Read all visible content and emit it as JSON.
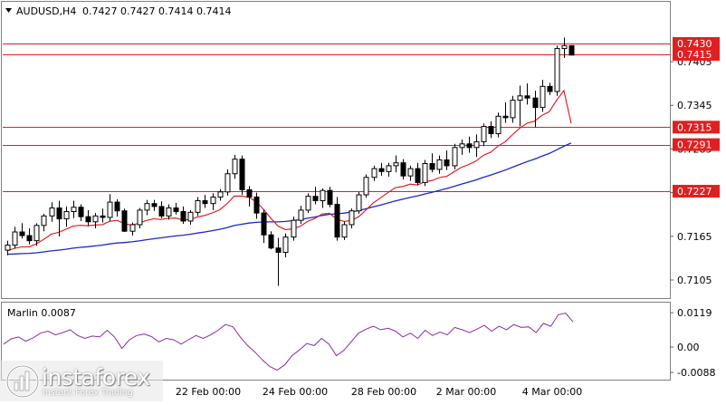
{
  "header": {
    "title": "AUDUSD,H4",
    "quote": "0.7427 0.7427 0.7414 0.7414"
  },
  "indicator": {
    "label": "Marlin 0.0087"
  },
  "watermark": {
    "brand": "instaforex",
    "tagline": "Instant Forex Trading"
  },
  "colors": {
    "candle": "#000000",
    "ma_fast": "#e0101a",
    "ma_slow": "#1b28c8",
    "oscillator": "#8a2aa8",
    "level_line": "#e02020",
    "level_label_bg": "#e02020"
  },
  "chart_data": [
    {
      "type": "candlestick",
      "symbol": "AUDUSD",
      "timeframe": "H4",
      "y_axis_ticks": [
        "0.7405",
        "0.7345",
        "0.7285",
        "0.7225",
        "0.7165",
        "0.7105"
      ],
      "ylim": [
        0.7086,
        0.7446
      ],
      "x_axis_ticks": [
        "22 Feb 00:00",
        "24 Feb 00:00",
        "28 Feb 00:00",
        "2 Mar 00:00",
        "4 Mar 00:00"
      ],
      "levels": [
        "0.7430",
        "0.7415",
        "0.7315",
        "0.7291",
        "0.7227"
      ],
      "candles": [
        [
          0.7146,
          0.7159,
          0.7139,
          0.7153
        ],
        [
          0.7153,
          0.7178,
          0.7148,
          0.7171
        ],
        [
          0.7171,
          0.7183,
          0.7162,
          0.7166
        ],
        [
          0.7166,
          0.7176,
          0.7154,
          0.7159
        ],
        [
          0.7159,
          0.7183,
          0.7152,
          0.718
        ],
        [
          0.718,
          0.7196,
          0.7172,
          0.7193
        ],
        [
          0.7193,
          0.7212,
          0.7185,
          0.7204
        ],
        [
          0.7204,
          0.7214,
          0.7165,
          0.7189
        ],
        [
          0.7189,
          0.7206,
          0.7178,
          0.7199
        ],
        [
          0.7199,
          0.7214,
          0.719,
          0.7205
        ],
        [
          0.7205,
          0.7209,
          0.7186,
          0.7192
        ],
        [
          0.7192,
          0.7201,
          0.7179,
          0.7185
        ],
        [
          0.7185,
          0.7197,
          0.7176,
          0.7193
        ],
        [
          0.7193,
          0.7203,
          0.7184,
          0.7191
        ],
        [
          0.7191,
          0.7223,
          0.7186,
          0.7212
        ],
        [
          0.7212,
          0.7216,
          0.7192,
          0.72
        ],
        [
          0.72,
          0.7203,
          0.7171,
          0.7172
        ],
        [
          0.7172,
          0.7184,
          0.7166,
          0.7181
        ],
        [
          0.7181,
          0.7204,
          0.7176,
          0.7201
        ],
        [
          0.7201,
          0.7215,
          0.7194,
          0.721
        ],
        [
          0.721,
          0.7215,
          0.72,
          0.7206
        ],
        [
          0.7206,
          0.7213,
          0.719,
          0.7193
        ],
        [
          0.7193,
          0.7209,
          0.7188,
          0.7204
        ],
        [
          0.7204,
          0.7211,
          0.7195,
          0.7199
        ],
        [
          0.7199,
          0.7206,
          0.7182,
          0.7186
        ],
        [
          0.7186,
          0.7201,
          0.7181,
          0.7198
        ],
        [
          0.7198,
          0.7219,
          0.7193,
          0.7214
        ],
        [
          0.7214,
          0.7222,
          0.7204,
          0.721
        ],
        [
          0.721,
          0.7224,
          0.7201,
          0.7219
        ],
        [
          0.7219,
          0.723,
          0.7214,
          0.7226
        ],
        [
          0.7226,
          0.7257,
          0.7221,
          0.7251
        ],
        [
          0.7251,
          0.7277,
          0.7244,
          0.7271
        ],
        [
          0.7271,
          0.7276,
          0.7222,
          0.7229
        ],
        [
          0.7229,
          0.7234,
          0.7206,
          0.7219
        ],
        [
          0.7219,
          0.7225,
          0.7189,
          0.7197
        ],
        [
          0.7197,
          0.7202,
          0.7156,
          0.7167
        ],
        [
          0.7167,
          0.7172,
          0.7147,
          0.7149
        ],
        [
          0.7149,
          0.7163,
          0.7097,
          0.7143
        ],
        [
          0.7143,
          0.7169,
          0.7136,
          0.7164
        ],
        [
          0.7164,
          0.7192,
          0.7159,
          0.7187
        ],
        [
          0.7187,
          0.7207,
          0.7182,
          0.7201
        ],
        [
          0.7201,
          0.7224,
          0.7197,
          0.722
        ],
        [
          0.722,
          0.7233,
          0.7209,
          0.7214
        ],
        [
          0.7214,
          0.7231,
          0.7204,
          0.7228
        ],
        [
          0.7228,
          0.7233,
          0.7205,
          0.7209
        ],
        [
          0.7209,
          0.7219,
          0.7159,
          0.7164
        ],
        [
          0.7164,
          0.7185,
          0.716,
          0.7181
        ],
        [
          0.7181,
          0.7203,
          0.7176,
          0.72
        ],
        [
          0.72,
          0.7226,
          0.7196,
          0.7222
        ],
        [
          0.7222,
          0.725,
          0.7218,
          0.7246
        ],
        [
          0.7246,
          0.7262,
          0.7241,
          0.7258
        ],
        [
          0.7258,
          0.7266,
          0.7248,
          0.7254
        ],
        [
          0.7254,
          0.7266,
          0.7247,
          0.7262
        ],
        [
          0.7262,
          0.7276,
          0.7253,
          0.7266
        ],
        [
          0.7266,
          0.7271,
          0.7243,
          0.7248
        ],
        [
          0.7248,
          0.7262,
          0.7241,
          0.7258
        ],
        [
          0.7258,
          0.7266,
          0.7235,
          0.7239
        ],
        [
          0.7239,
          0.727,
          0.7234,
          0.7265
        ],
        [
          0.7265,
          0.7279,
          0.7253,
          0.7257
        ],
        [
          0.7257,
          0.7276,
          0.7251,
          0.727
        ],
        [
          0.727,
          0.7283,
          0.7256,
          0.7262
        ],
        [
          0.7262,
          0.7292,
          0.7257,
          0.7287
        ],
        [
          0.7287,
          0.7298,
          0.7277,
          0.7292
        ],
        [
          0.7292,
          0.7302,
          0.728,
          0.7287
        ],
        [
          0.7287,
          0.7305,
          0.7274,
          0.7295
        ],
        [
          0.7295,
          0.732,
          0.7289,
          0.7316
        ],
        [
          0.7316,
          0.7323,
          0.73,
          0.7306
        ],
        [
          0.7306,
          0.7335,
          0.7301,
          0.733
        ],
        [
          0.733,
          0.7349,
          0.7321,
          0.7328
        ],
        [
          0.7328,
          0.7358,
          0.7321,
          0.7352
        ],
        [
          0.7352,
          0.7372,
          0.7316,
          0.7358
        ],
        [
          0.7358,
          0.7375,
          0.7346,
          0.7355
        ],
        [
          0.7355,
          0.7365,
          0.7315,
          0.7342
        ],
        [
          0.7342,
          0.738,
          0.7336,
          0.7371
        ],
        [
          0.7371,
          0.7376,
          0.7359,
          0.7364
        ],
        [
          0.7364,
          0.7427,
          0.7358,
          0.7423
        ],
        [
          0.7423,
          0.7438,
          0.741,
          0.7427
        ],
        [
          0.7427,
          0.7427,
          0.7414,
          0.7414
        ]
      ],
      "ma_fast_last": 0.732,
      "ma_slow_last": 0.7289
    },
    {
      "type": "line",
      "name": "Marlin",
      "y_axis_ticks": [
        "0.0119",
        "0.00",
        "-0.0088"
      ],
      "ylim": [
        -0.01,
        0.013
      ],
      "values": [
        0.001,
        0.0028,
        0.0035,
        0.002,
        0.0032,
        0.0048,
        0.0055,
        0.0042,
        0.005,
        0.006,
        0.004,
        0.003,
        0.0038,
        0.0035,
        0.0058,
        0.0035,
        -0.0005,
        0.0025,
        0.004,
        0.0045,
        0.0036,
        0.0018,
        0.003,
        0.0025,
        0.001,
        0.0025,
        0.004,
        0.003,
        0.0042,
        0.0058,
        0.0078,
        0.007,
        0.0035,
        0.0005,
        -0.0018,
        -0.0045,
        -0.0068,
        -0.008,
        -0.0062,
        -0.003,
        -0.001,
        0.0012,
        0.0005,
        0.003,
        0.001,
        -0.003,
        -0.0012,
        0.0018,
        0.0048,
        0.0062,
        0.0072,
        0.006,
        0.0065,
        0.0055,
        0.0035,
        0.0048,
        0.003,
        0.0058,
        0.004,
        0.0052,
        0.0042,
        0.0068,
        0.006,
        0.005,
        0.0062,
        0.0075,
        0.0055,
        0.0072,
        0.006,
        0.0078,
        0.0068,
        0.007,
        0.005,
        0.0082,
        0.0072,
        0.0112,
        0.0118,
        0.0087
      ]
    }
  ]
}
